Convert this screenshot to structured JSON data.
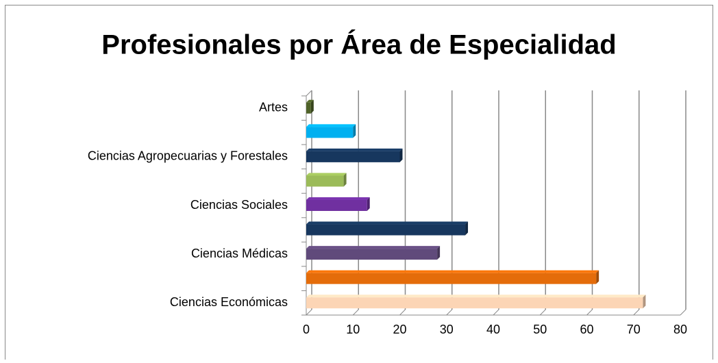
{
  "chart_data": {
    "type": "bar",
    "orientation": "horizontal",
    "title": "Profesionales por Área de Especialidad",
    "categories": [
      "Ciencias Económicas",
      null,
      "Ciencias Médicas",
      null,
      "Ciencias Sociales",
      null,
      "Ciencias Agropecuarias y Forestales",
      null,
      "Artes"
    ],
    "values": [
      72,
      62,
      28,
      34,
      13,
      8,
      20,
      10,
      1
    ],
    "colors": [
      "#fcd5b5",
      "#e46c0a",
      "#604a7b",
      "#17375e",
      "#7030a0",
      "#9bbb59",
      "#17375e",
      "#00b0f0",
      "#4f6228"
    ],
    "xlim": [
      0,
      80
    ],
    "xticks": [
      0,
      10,
      20,
      30,
      40,
      50,
      60,
      70,
      80
    ],
    "grid": true
  }
}
